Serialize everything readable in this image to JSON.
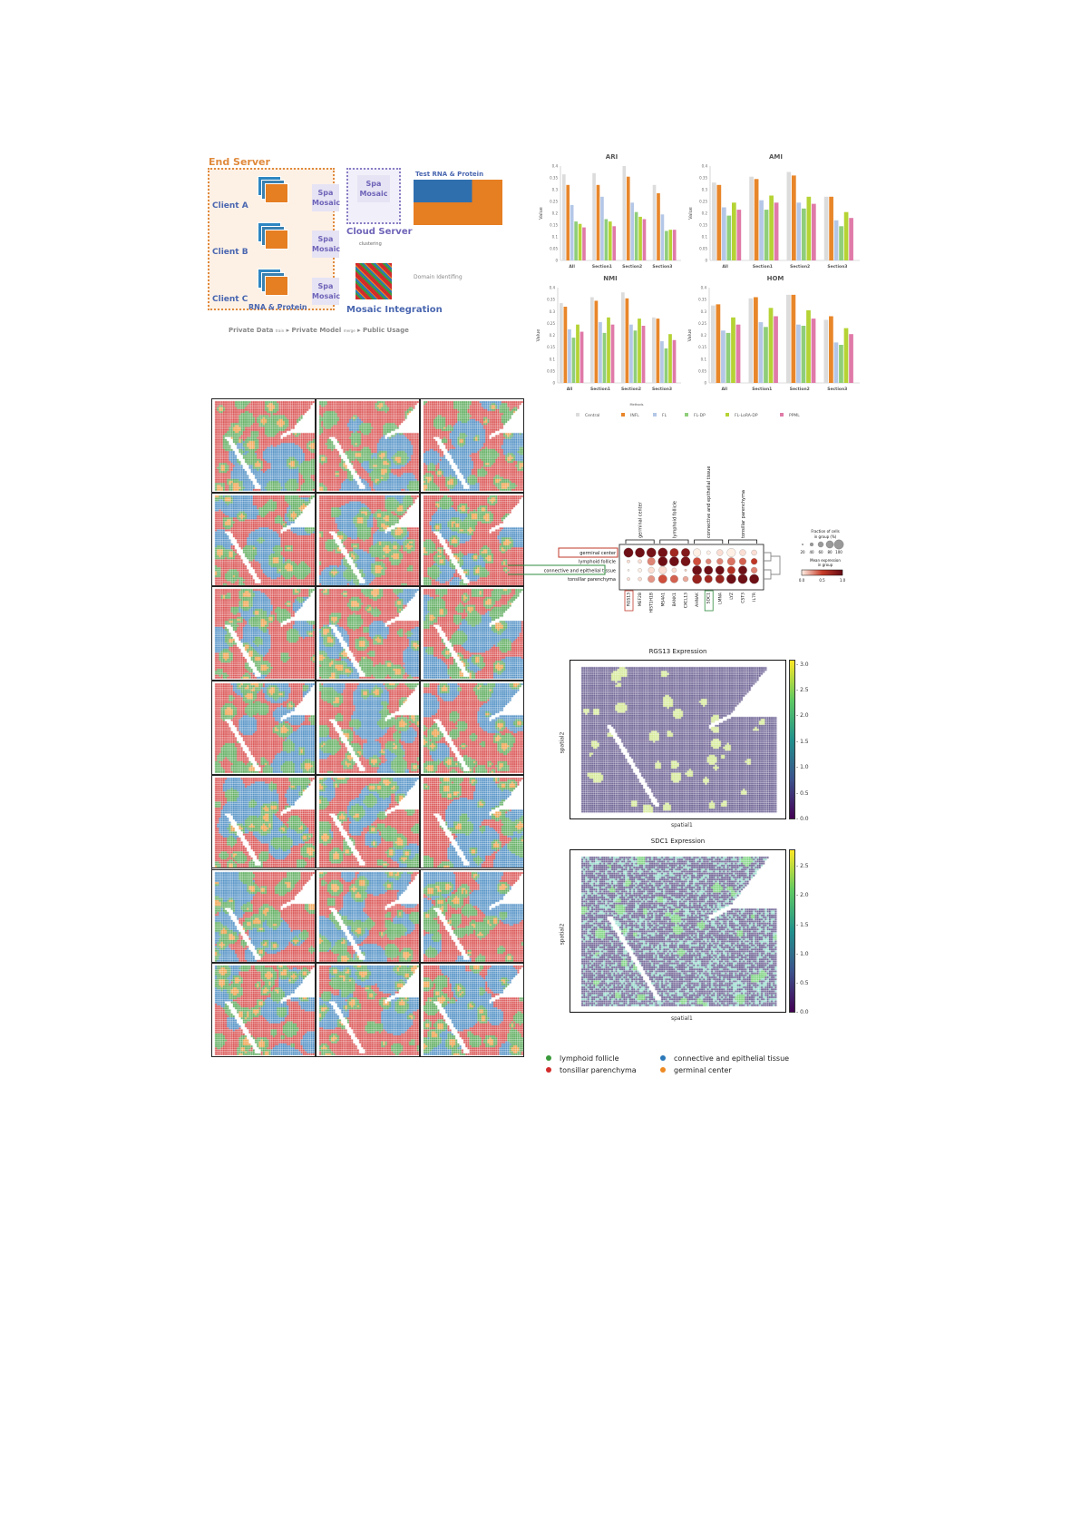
{
  "schematic": {
    "end_server": "End Server",
    "clients": [
      "Client A",
      "Client B",
      "Client C"
    ],
    "model_label_line1": "Spa",
    "model_label_line2": "Mosaic",
    "rna_protein": "RNA & Protein",
    "cloud_server": "Cloud Server",
    "clustering": "clustering",
    "test_data": "Test RNA & Protein",
    "domain_identifying": "Domain Identifing",
    "mosaic_integration": "Mosaic Integration",
    "flow": [
      "Private Data",
      "train",
      "Private Model",
      "merge",
      "Public Usage"
    ]
  },
  "chart_data": [
    {
      "type": "bar",
      "title": "ARI",
      "ylabel": "Value",
      "ylim": [
        0,
        0.4
      ],
      "yticks": [
        "0",
        "0.05",
        "0.1",
        "0.15",
        "0.2",
        "0.25",
        "0.3",
        "0.35",
        "0.4"
      ],
      "categories": [
        "All",
        "Section1",
        "Section2",
        "Section3"
      ],
      "series": [
        {
          "name": "Central",
          "values": [
            0.365,
            0.37,
            0.4,
            0.32
          ]
        },
        {
          "name": "INFL",
          "values": [
            0.32,
            0.32,
            0.355,
            0.285
          ]
        },
        {
          "name": "FL",
          "values": [
            0.235,
            0.27,
            0.245,
            0.195
          ]
        },
        {
          "name": "FL-DP",
          "values": [
            0.165,
            0.175,
            0.205,
            0.125
          ]
        },
        {
          "name": "FL-LoRA-DP",
          "values": [
            0.155,
            0.165,
            0.185,
            0.13
          ]
        },
        {
          "name": "PPML",
          "values": [
            0.14,
            0.145,
            0.175,
            0.13
          ]
        }
      ]
    },
    {
      "type": "bar",
      "title": "AMI",
      "ylabel": "Value",
      "ylim": [
        0,
        0.4
      ],
      "yticks": [
        "0",
        "0.05",
        "0.1",
        "0.15",
        "0.2",
        "0.25",
        "0.3",
        "0.35",
        "0.4"
      ],
      "categories": [
        "All",
        "Section1",
        "Section2",
        "Section3"
      ],
      "series": [
        {
          "name": "Central",
          "values": [
            0.33,
            0.355,
            0.375,
            0.27
          ]
        },
        {
          "name": "INFL",
          "values": [
            0.32,
            0.345,
            0.36,
            0.27
          ]
        },
        {
          "name": "FL",
          "values": [
            0.225,
            0.255,
            0.245,
            0.17
          ]
        },
        {
          "name": "FL-DP",
          "values": [
            0.19,
            0.215,
            0.22,
            0.145
          ]
        },
        {
          "name": "FL-LoRA-DP",
          "values": [
            0.245,
            0.275,
            0.27,
            0.205
          ]
        },
        {
          "name": "PPML",
          "values": [
            0.215,
            0.245,
            0.24,
            0.18
          ]
        }
      ]
    },
    {
      "type": "bar",
      "title": "NMI",
      "ylabel": "Value",
      "ylim": [
        0,
        0.4
      ],
      "yticks": [
        "0",
        "0.05",
        "0.1",
        "0.15",
        "0.2",
        "0.25",
        "0.3",
        "0.35",
        "0.4"
      ],
      "categories": [
        "All",
        "Section1",
        "Section2",
        "Section3"
      ],
      "series": [
        {
          "name": "Central",
          "values": [
            0.335,
            0.36,
            0.38,
            0.275
          ]
        },
        {
          "name": "INFL",
          "values": [
            0.32,
            0.345,
            0.355,
            0.27
          ]
        },
        {
          "name": "FL",
          "values": [
            0.225,
            0.255,
            0.245,
            0.175
          ]
        },
        {
          "name": "FL-DP",
          "values": [
            0.19,
            0.21,
            0.22,
            0.145
          ]
        },
        {
          "name": "FL-LoRA-DP",
          "values": [
            0.245,
            0.275,
            0.27,
            0.205
          ]
        },
        {
          "name": "PPML",
          "values": [
            0.215,
            0.245,
            0.24,
            0.18
          ]
        }
      ]
    },
    {
      "type": "bar",
      "title": "HOM",
      "ylabel": "Value",
      "ylim": [
        0,
        0.4
      ],
      "yticks": [
        "0",
        "0.05",
        "0.1",
        "0.15",
        "0.2",
        "0.25",
        "0.3",
        "0.35",
        "0.4"
      ],
      "categories": [
        "All",
        "Section1",
        "Section2",
        "Section3"
      ],
      "series": [
        {
          "name": "Central",
          "values": [
            0.325,
            0.355,
            0.37,
            0.265
          ]
        },
        {
          "name": "INFL",
          "values": [
            0.33,
            0.36,
            0.37,
            0.28
          ]
        },
        {
          "name": "FL",
          "values": [
            0.22,
            0.255,
            0.245,
            0.17
          ]
        },
        {
          "name": "FL-DP",
          "values": [
            0.21,
            0.235,
            0.24,
            0.16
          ]
        },
        {
          "name": "FL-LoRA-DP",
          "values": [
            0.275,
            0.315,
            0.305,
            0.23
          ]
        },
        {
          "name": "PPML",
          "values": [
            0.245,
            0.28,
            0.27,
            0.205
          ]
        }
      ]
    }
  ],
  "methods_legend": {
    "title": "Methods",
    "items": [
      {
        "label": "Central",
        "color": "#dcdcdc"
      },
      {
        "label": "INFL",
        "color": "#e8862a"
      },
      {
        "label": "FL",
        "color": "#b4c7e7"
      },
      {
        "label": "FL-DP",
        "color": "#8fce7a"
      },
      {
        "label": "FL-LoRA-DP",
        "color": "#b5d334"
      },
      {
        "label": "PPML",
        "color": "#e07aa8"
      }
    ]
  },
  "dotplot": {
    "groups": [
      "germinal center",
      "lymphoid follicle",
      "connective and epithelial tissue",
      "tonsillar parenchyma"
    ],
    "rows": [
      "germinal center",
      "lymphoid follicle",
      "connective and epithelial tissue",
      "tonsillar parenchyma"
    ],
    "genes": [
      "RGS13",
      "MEF2B",
      "HIST1H1B",
      "MS4A1",
      "BANK1",
      "CXCL13",
      "AHNAK",
      "SDC1",
      "LMNA",
      "LYZ",
      "CST3",
      "IL7R"
    ],
    "fraction": [
      [
        1,
        1,
        1,
        1,
        0.9,
        0.9,
        0.8,
        0.3,
        0.6,
        0.9,
        0.6,
        0.5
      ],
      [
        0.2,
        0.3,
        0.8,
        1,
        1,
        1,
        0.8,
        0.5,
        0.6,
        0.8,
        0.7,
        0.6
      ],
      [
        0.05,
        0.3,
        0.6,
        0.8,
        0.4,
        0.1,
        1,
        0.9,
        0.9,
        0.8,
        0.9,
        0.6
      ],
      [
        0.2,
        0.3,
        0.7,
        0.9,
        0.8,
        0.5,
        1,
        0.8,
        0.9,
        1,
        1,
        1
      ]
    ],
    "mean_expression": [
      [
        0.95,
        0.95,
        0.92,
        0.92,
        0.7,
        0.85,
        0.0,
        0.0,
        0.05,
        0.0,
        0.05,
        0.05
      ],
      [
        0.05,
        0.05,
        0.3,
        0.95,
        0.95,
        0.9,
        0.45,
        0.3,
        0.3,
        0.35,
        0.4,
        0.55
      ],
      [
        0.0,
        0.0,
        0.05,
        0.05,
        0.05,
        0.1,
        0.95,
        0.95,
        0.95,
        0.6,
        0.95,
        0.3
      ],
      [
        0.05,
        0.05,
        0.25,
        0.45,
        0.4,
        0.2,
        0.75,
        0.7,
        0.75,
        0.95,
        0.95,
        0.95
      ]
    ],
    "size_legend_title": [
      "Fraction of cells",
      "in group (%)"
    ],
    "size_legend_ticks": [
      "20",
      "40",
      "60",
      "80",
      "100"
    ],
    "color_legend_title": [
      "Mean expression",
      "in group"
    ],
    "color_legend_ticks": [
      "0.0",
      "0.5",
      "1.0"
    ],
    "highlight_red": "#c0392b",
    "highlight_green": "#2e8b3c"
  },
  "expression_plots": [
    {
      "title": "RGS13 Expression",
      "xlabel": "spatial1",
      "ylabel": "spatial2",
      "colorbar_ticks": [
        "0.0",
        "0.5",
        "1.0",
        "1.5",
        "2.0",
        "2.5",
        "3.0"
      ]
    },
    {
      "title": "SDC1 Expression",
      "xlabel": "spatial1",
      "ylabel": "spatial2",
      "colorbar_ticks": [
        "0.0",
        "0.5",
        "1.0",
        "1.5",
        "2.0",
        "2.5"
      ]
    }
  ],
  "domain_legend": [
    {
      "label": "lymphoid follicle",
      "color": "#3a9a3a"
    },
    {
      "label": "connective and epithelial tissue",
      "color": "#2b78b8"
    },
    {
      "label": "tonsillar parenchyma",
      "color": "#d22b2b"
    },
    {
      "label": "germinal center",
      "color": "#ee8a22"
    }
  ]
}
